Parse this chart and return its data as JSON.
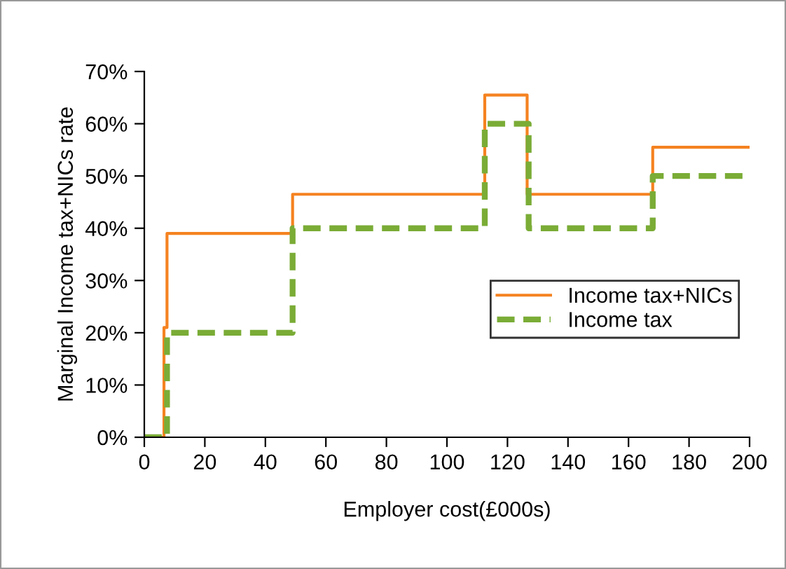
{
  "chart_data": {
    "type": "step",
    "xlabel": "Employer cost(£000s)",
    "ylabel": "Marginal Income tax+NICs rate",
    "xlim": [
      0,
      200
    ],
    "xticks": [
      0,
      20,
      40,
      60,
      80,
      100,
      120,
      140,
      160,
      180,
      200
    ],
    "ylim": [
      0,
      70
    ],
    "yticks": [
      {
        "value": 0,
        "label": "0%"
      },
      {
        "value": 10,
        "label": "10%"
      },
      {
        "value": 20,
        "label": "20%"
      },
      {
        "value": 30,
        "label": "30%"
      },
      {
        "value": 40,
        "label": "40%"
      },
      {
        "value": 50,
        "label": "50%"
      },
      {
        "value": 60,
        "label": "60%"
      },
      {
        "value": 70,
        "label": "70%"
      }
    ],
    "grid": false,
    "legend": "right",
    "series": [
      {
        "name": "Income tax+NICs",
        "color": "#f58220",
        "line_style": "solid",
        "x": [
          0,
          6.5,
          7.5,
          49,
          112.5,
          126.5,
          168,
          200
        ],
        "values": [
          0,
          21,
          39,
          46.5,
          65.5,
          46.5,
          55.5,
          55.5
        ]
      },
      {
        "name": "Income tax",
        "color": "#7aac36",
        "line_style": "dashed",
        "x": [
          0,
          7.5,
          49,
          112.5,
          127,
          168,
          200
        ],
        "values": [
          0,
          20,
          40,
          60,
          40,
          50,
          50
        ]
      }
    ]
  }
}
